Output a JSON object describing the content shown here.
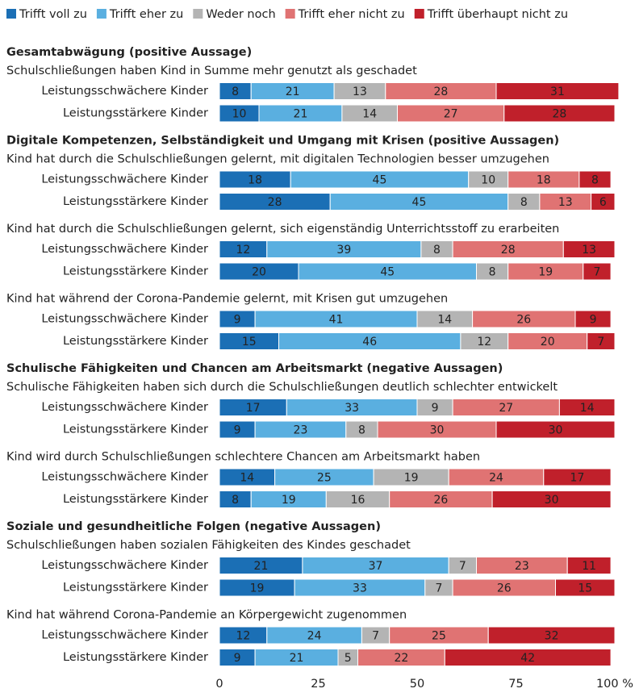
{
  "chart_data": {
    "type": "bar",
    "orientation": "horizontal",
    "stacked": true,
    "series": [
      {
        "name": "Trifft voll zu",
        "color": "#1b6fb5",
        "label_color": "#ffffff"
      },
      {
        "name": "Trifft eher zu",
        "color": "#5aafe0",
        "label_color": "#333333"
      },
      {
        "name": "Weder noch",
        "color": "#b4b4b4",
        "label_color": "#333333"
      },
      {
        "name": "Trifft eher nicht zu",
        "color": "#e07373",
        "label_color": "#333333"
      },
      {
        "name": "Trifft überhaupt nicht zu",
        "color": "#c0202b",
        "label_color": "#ffffff"
      }
    ],
    "sections": [
      {
        "title": "Gesamtabwägung (positive Aussage)",
        "questions": [
          {
            "text": "Schulschließungen haben Kind in Summe mehr genutzt als geschadet",
            "rows": [
              {
                "label": "Leistungsschwächere Kinder",
                "values": [
                  8,
                  21,
                  13,
                  28,
                  31
                ]
              },
              {
                "label": "Leistungsstärkere Kinder",
                "values": [
                  10,
                  21,
                  14,
                  27,
                  28
                ]
              }
            ]
          }
        ]
      },
      {
        "title": "Digitale Kompetenzen, Selbständigkeit und Umgang mit Krisen (positive Aussagen)",
        "questions": [
          {
            "text": "Kind hat durch die Schulschließungen gelernt, mit digitalen Technologien besser umzugehen",
            "rows": [
              {
                "label": "Leistungsschwächere Kinder",
                "values": [
                  18,
                  45,
                  10,
                  18,
                  8
                ]
              },
              {
                "label": "Leistungsstärkere Kinder",
                "values": [
                  28,
                  45,
                  8,
                  13,
                  6
                ]
              }
            ]
          },
          {
            "text": "Kind hat durch die Schulschließungen gelernt, sich eigenständig Unterrichtsstoff zu erarbeiten",
            "rows": [
              {
                "label": "Leistungsschwächere Kinder",
                "values": [
                  12,
                  39,
                  8,
                  28,
                  13
                ]
              },
              {
                "label": "Leistungsstärkere Kinder",
                "values": [
                  20,
                  45,
                  8,
                  19,
                  7
                ]
              }
            ]
          },
          {
            "text": "Kind hat während der Corona-Pandemie gelernt, mit Krisen gut umzugehen",
            "rows": [
              {
                "label": "Leistungsschwächere Kinder",
                "values": [
                  9,
                  41,
                  14,
                  26,
                  9
                ]
              },
              {
                "label": "Leistungsstärkere Kinder",
                "values": [
                  15,
                  46,
                  12,
                  20,
                  7
                ]
              }
            ]
          }
        ]
      },
      {
        "title": "Schulische Fähigkeiten und Chancen am Arbeitsmarkt (negative Aussagen)",
        "questions": [
          {
            "text": "Schulische Fähigkeiten haben sich durch die Schulschließungen deutlich schlechter entwickelt",
            "rows": [
              {
                "label": "Leistungsschwächere Kinder",
                "values": [
                  17,
                  33,
                  9,
                  27,
                  14
                ]
              },
              {
                "label": "Leistungsstärkere Kinder",
                "values": [
                  9,
                  23,
                  8,
                  30,
                  30
                ]
              }
            ]
          },
          {
            "text": "Kind wird durch Schulschließungen schlechtere Chancen am Arbeitsmarkt haben",
            "rows": [
              {
                "label": "Leistungsschwächere Kinder",
                "values": [
                  14,
                  25,
                  19,
                  24,
                  17
                ]
              },
              {
                "label": "Leistungsstärkere Kinder",
                "values": [
                  8,
                  19,
                  16,
                  26,
                  30
                ]
              }
            ]
          }
        ]
      },
      {
        "title": "Soziale und gesundheitliche Folgen (negative Aussagen)",
        "questions": [
          {
            "text": "Schulschließungen haben sozialen Fähigkeiten des Kindes geschadet",
            "rows": [
              {
                "label": "Leistungsschwächere Kinder",
                "values": [
                  21,
                  37,
                  7,
                  23,
                  11
                ]
              },
              {
                "label": "Leistungsstärkere Kinder",
                "values": [
                  19,
                  33,
                  7,
                  26,
                  15
                ]
              }
            ]
          },
          {
            "text": "Kind hat während Corona-Pandemie an Körpergewicht zugenommen",
            "rows": [
              {
                "label": "Leistungsschwächere Kinder",
                "values": [
                  12,
                  24,
                  7,
                  25,
                  32
                ]
              },
              {
                "label": "Leistungsstärkere Kinder",
                "values": [
                  9,
                  21,
                  5,
                  22,
                  42
                ]
              }
            ]
          }
        ]
      }
    ],
    "xlim": [
      0,
      100
    ],
    "xticks": [
      0,
      25,
      50,
      75,
      {
        "value": 100,
        "label": "100 %"
      }
    ],
    "legend": "top"
  }
}
